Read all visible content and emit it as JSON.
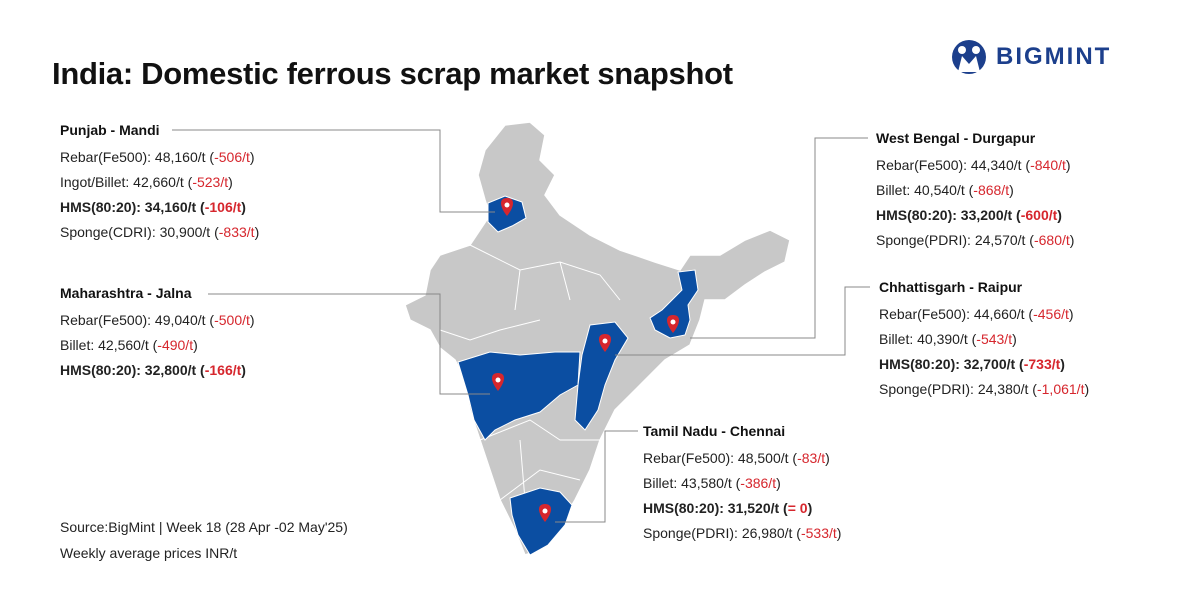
{
  "header": {
    "title": "India: Domestic ferrous scrap market snapshot",
    "logo": "BIGMINT"
  },
  "regions": [
    {
      "name": "Punjab - Mandi",
      "items": [
        {
          "text": "Rebar(Fe500): 48,160/t (",
          "change": "-506/t",
          "close": ")",
          "bold": false
        },
        {
          "text": "Ingot/Billet: 42,660/t (",
          "change": "-523/t",
          "close": ")",
          "bold": false
        },
        {
          "text": "HMS(80:20): 34,160/t (",
          "change": "-106/t",
          "close": ")",
          "bold": true
        },
        {
          "text": "Sponge(CDRI): 30,900/t (",
          "change": "-833/t",
          "close": ")",
          "bold": false
        }
      ]
    },
    {
      "name": "Maharashtra - Jalna",
      "items": [
        {
          "text": "Rebar(Fe500): 49,040/t (",
          "change": "-500/t",
          "close": ")",
          "bold": false
        },
        {
          "text": "Billet: 42,560/t (",
          "change": "-490/t",
          "close": ")",
          "bold": false
        },
        {
          "text": "HMS(80:20): 32,800/t (",
          "change": "-166/t",
          "close": ")",
          "bold": true
        }
      ]
    },
    {
      "name": "West Bengal - Durgapur",
      "items": [
        {
          "text": "Rebar(Fe500): 44,340/t (",
          "change": "-840/t",
          "close": ")",
          "bold": false
        },
        {
          "text": "Billet: 40,540/t (",
          "change": "-868/t",
          "close": ")",
          "bold": false
        },
        {
          "text": "HMS(80:20): 33,200/t (",
          "change": "-600/t",
          "close": ")",
          "bold": true
        },
        {
          "text": "Sponge(PDRI): 24,570/t (",
          "change": "-680/t",
          "close": ")",
          "bold": false
        }
      ]
    },
    {
      "name": "Chhattisgarh - Raipur",
      "items": [
        {
          "text": "Rebar(Fe500): 44,660/t (",
          "change": "-456/t",
          "close": ")",
          "bold": false
        },
        {
          "text": "Billet: 40,390/t (",
          "change": "-543/t",
          "close": ")",
          "bold": false
        },
        {
          "text": "HMS(80:20): 32,700/t (",
          "change": "-733/t",
          "close": ")",
          "bold": true
        },
        {
          "text": "Sponge(PDRI): 24,380/t (",
          "change": "-1,061/t",
          "close": ")",
          "bold": false
        }
      ]
    },
    {
      "name": "Tamil Nadu - Chennai",
      "items": [
        {
          "text": "Rebar(Fe500): 48,500/t (",
          "change": "-83/t",
          "close": ")",
          "bold": false
        },
        {
          "text": "Billet: 43,580/t (",
          "change": "-386/t",
          "close": ")",
          "bold": false
        },
        {
          "text": "HMS(80:20): 31,520/t (",
          "change": "= 0",
          "close": ")",
          "bold": true
        },
        {
          "text": "Sponge(PDRI): 26,980/t (",
          "change": "-533/t",
          "close": ")",
          "bold": false
        }
      ]
    }
  ],
  "source": [
    "Source:BigMint | Week 18 (28 Apr -02 May'25)",
    "Weekly average prices INR/t"
  ]
}
